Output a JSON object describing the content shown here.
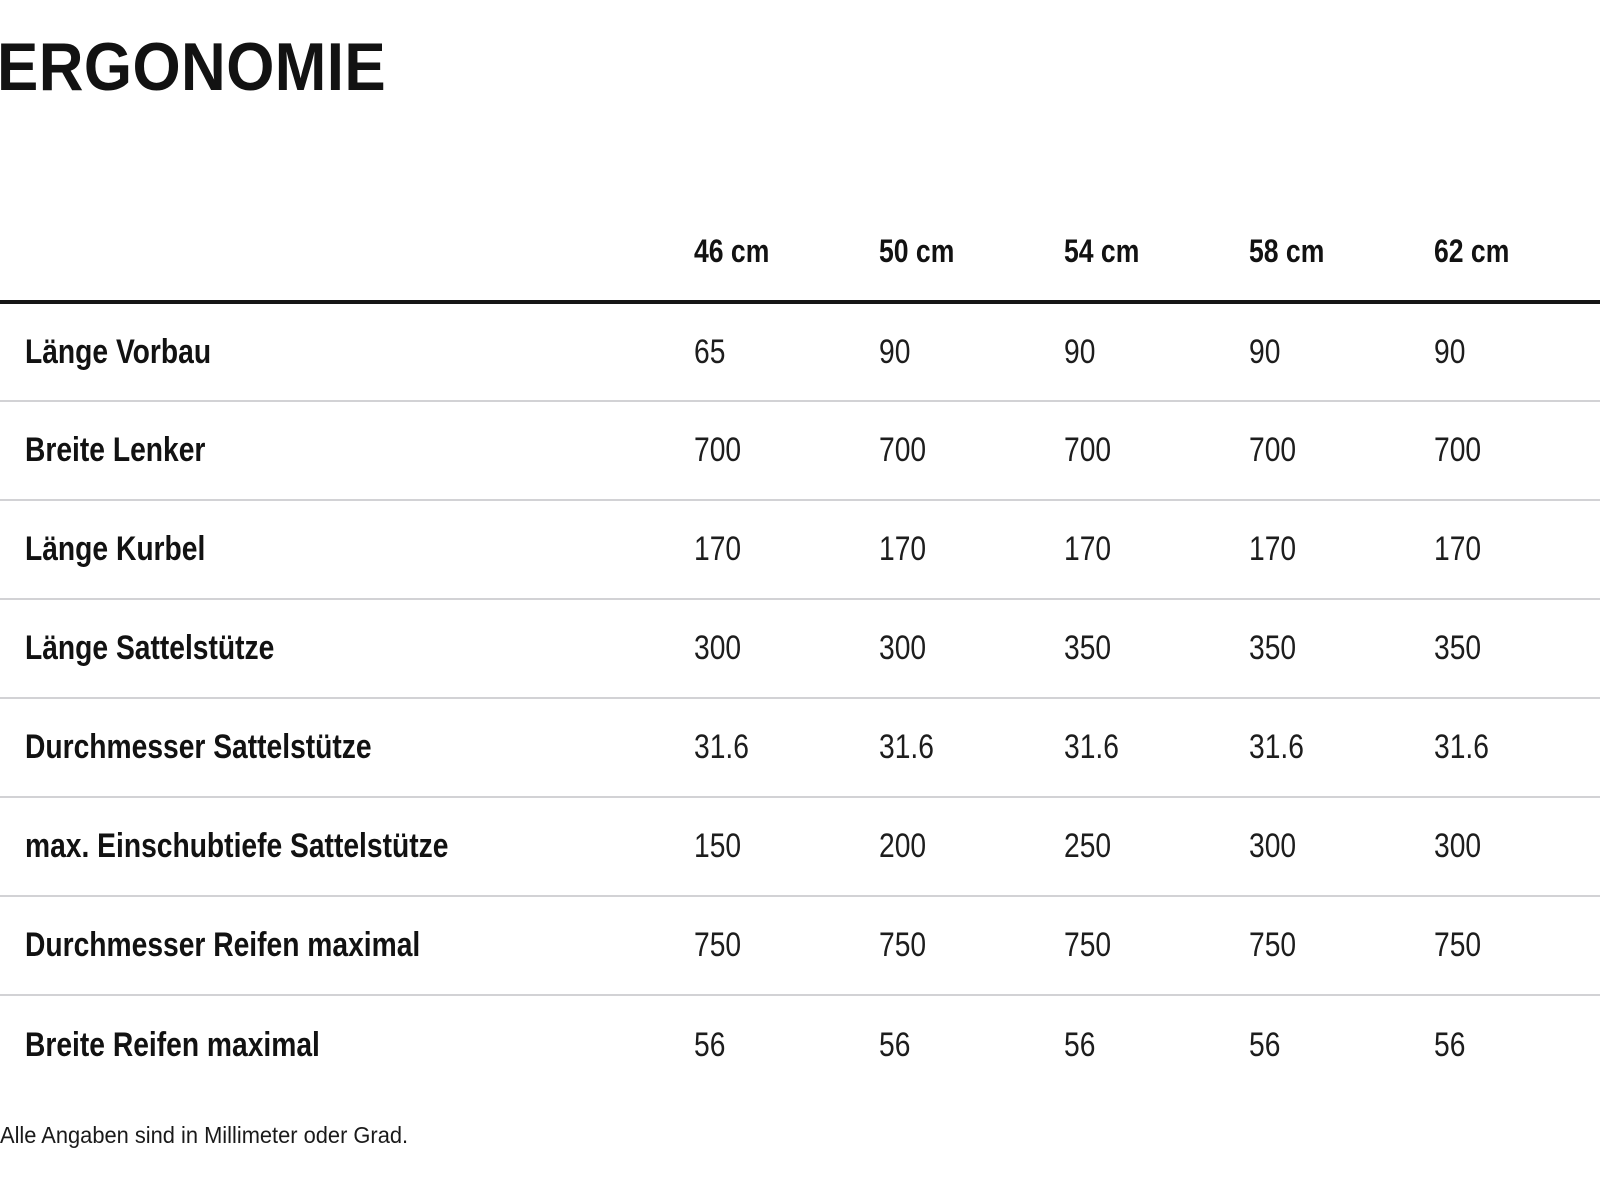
{
  "page": {
    "title": "ERGONOMIE",
    "footnote": "Alle Angaben sind in Millimeter oder Grad."
  },
  "table": {
    "columns": [
      "46 cm",
      "50 cm",
      "54 cm",
      "58 cm",
      "62 cm"
    ],
    "rows": [
      {
        "label": "Länge Vorbau",
        "values": [
          "65",
          "90",
          "90",
          "90",
          "90"
        ]
      },
      {
        "label": "Breite Lenker",
        "values": [
          "700",
          "700",
          "700",
          "700",
          "700"
        ]
      },
      {
        "label": "Länge Kurbel",
        "values": [
          "170",
          "170",
          "170",
          "170",
          "170"
        ]
      },
      {
        "label": "Länge Sattelstütze",
        "values": [
          "300",
          "300",
          "350",
          "350",
          "350"
        ]
      },
      {
        "label": "Durchmesser Sattelstütze",
        "values": [
          "31.6",
          "31.6",
          "31.6",
          "31.6",
          "31.6"
        ]
      },
      {
        "label": "max. Einschubtiefe Sattelstütze",
        "values": [
          "150",
          "200",
          "250",
          "300",
          "300"
        ]
      },
      {
        "label": "Durchmesser Reifen maximal",
        "values": [
          "750",
          "750",
          "750",
          "750",
          "750"
        ]
      },
      {
        "label": "Breite Reifen maximal",
        "values": [
          "56",
          "56",
          "56",
          "56",
          "56"
        ]
      }
    ]
  },
  "colors": {
    "heading_text": "#121212",
    "body_text": "#1d1d1d",
    "rule_heavy": "#161616",
    "rule_light": "#d2d2d5",
    "background": "#ffffff"
  }
}
